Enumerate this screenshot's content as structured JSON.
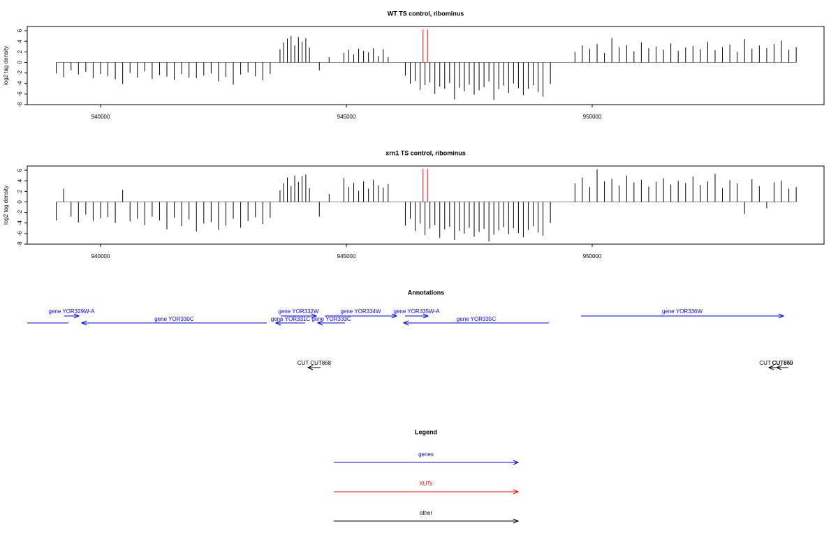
{
  "chart_data": [
    {
      "type": "bar",
      "title": "WT TS control, ribominus",
      "y_label": "log2 tag density",
      "xlim": [
        938509,
        954716
      ],
      "ylim": [
        -8,
        6.8
      ],
      "xticks": [
        940000,
        945000,
        950000
      ],
      "yticks": [
        -8,
        -6,
        -4,
        -2,
        0,
        2,
        4,
        6
      ],
      "color": "#000000",
      "x": [
        939100,
        939250,
        939400,
        939550,
        939700,
        939850,
        940000,
        940150,
        940300,
        940450,
        940600,
        940750,
        940900,
        941050,
        941200,
        941350,
        941500,
        941650,
        941800,
        941950,
        942100,
        942250,
        942400,
        942550,
        942700,
        942850,
        943000,
        943150,
        943300,
        943450,
        943650,
        943725,
        943800,
        943875,
        943950,
        944025,
        944100,
        944175,
        944250,
        944450,
        944650,
        944950,
        945050,
        945150,
        945250,
        945350,
        945450,
        945550,
        945650,
        945750,
        945850,
        946200,
        946300,
        946400,
        946500,
        946600,
        946700,
        946800,
        946900,
        947000,
        947100,
        947200,
        947300,
        947400,
        947500,
        947600,
        947700,
        947800,
        947900,
        948000,
        948100,
        948200,
        948300,
        948400,
        948500,
        948600,
        948700,
        948800,
        948900,
        949000,
        949150,
        949650,
        949800,
        949950,
        950100,
        950250,
        950400,
        950550,
        950700,
        950850,
        951000,
        951150,
        951300,
        951450,
        951600,
        951750,
        951900,
        952050,
        952200,
        952350,
        952500,
        952650,
        952800,
        952950,
        953100,
        953250,
        953400,
        953550,
        953700,
        953850,
        954000,
        954150
      ],
      "values": [
        -2.1,
        -2.8,
        -1.5,
        -2.3,
        -1.8,
        -3.0,
        -2.2,
        -2.6,
        -3.2,
        -4.1,
        -2.0,
        -2.9,
        -1.7,
        -3.1,
        -2.4,
        -2.7,
        -3.3,
        -2.2,
        -2.9,
        -3.0,
        -2.5,
        -2.1,
        -3.6,
        -2.8,
        -4.2,
        -2.3,
        -1.9,
        -2.6,
        -3.4,
        -2.2,
        2.5,
        3.8,
        4.5,
        5.0,
        3.2,
        4.8,
        3.9,
        4.6,
        2.8,
        -1.5,
        1.0,
        1.8,
        2.4,
        1.5,
        2.6,
        2.2,
        1.9,
        2.7,
        1.2,
        2.5,
        1.0,
        -2.5,
        -4.0,
        -3.5,
        -5.2,
        -4.3,
        -3.8,
        -6.0,
        -4.6,
        -5.0,
        -3.9,
        -7.0,
        -4.8,
        -5.5,
        -4.2,
        -6.1,
        -5.3,
        -4.7,
        -3.6,
        -7.1,
        -5.1,
        -4.4,
        -5.8,
        -4.0,
        -4.9,
        -6.2,
        -5.0,
        -4.3,
        -5.6,
        -6.5,
        -4.1,
        2.0,
        3.2,
        2.6,
        3.5,
        1.8,
        4.6,
        2.9,
        3.3,
        2.1,
        3.8,
        2.7,
        3.0,
        2.4,
        3.6,
        2.2,
        2.8,
        3.1,
        2.5,
        3.9,
        2.3,
        2.9,
        3.4,
        2.0,
        4.4,
        2.6,
        3.2,
        2.7,
        3.5,
        4.1,
        2.4,
        2.9
      ],
      "markers": [
        {
          "x": 946560,
          "color": "#ff0000"
        },
        {
          "x": 946650,
          "color": "#ff0000"
        }
      ]
    },
    {
      "type": "bar",
      "title": "xrn1 TS control, ribominus",
      "y_label": "log2 tag density",
      "xlim": [
        938509,
        954716
      ],
      "ylim": [
        -8,
        6.8
      ],
      "xticks": [
        940000,
        945000,
        950000
      ],
      "yticks": [
        -8,
        -6,
        -4,
        -2,
        0,
        2,
        4,
        6
      ],
      "color": "#000000",
      "x": [
        939100,
        939250,
        939400,
        939550,
        939700,
        939850,
        940000,
        940150,
        940300,
        940450,
        940600,
        940750,
        940900,
        941050,
        941200,
        941350,
        941500,
        941650,
        941800,
        941950,
        942100,
        942250,
        942400,
        942550,
        942700,
        942850,
        943000,
        943150,
        943300,
        943450,
        943650,
        943725,
        943800,
        943875,
        943950,
        944025,
        944100,
        944175,
        944250,
        944450,
        944650,
        944950,
        945050,
        945150,
        945250,
        945350,
        945450,
        945550,
        945650,
        945750,
        945850,
        946200,
        946300,
        946400,
        946500,
        946600,
        946700,
        946800,
        946900,
        947000,
        947100,
        947200,
        947300,
        947400,
        947500,
        947600,
        947700,
        947800,
        947900,
        948000,
        948100,
        948200,
        948300,
        948400,
        948500,
        948600,
        948700,
        948800,
        948900,
        949000,
        949150,
        949650,
        949800,
        949950,
        950100,
        950250,
        950400,
        950550,
        950700,
        950850,
        951000,
        951150,
        951300,
        951450,
        951600,
        951750,
        951900,
        952050,
        952200,
        952350,
        952500,
        952650,
        952800,
        952950,
        953100,
        953250,
        953400,
        953550,
        953700,
        953850,
        954000,
        954150
      ],
      "values": [
        -3.5,
        2.5,
        -2.8,
        -3.9,
        -2.4,
        -3.6,
        -3.1,
        -2.9,
        -4.0,
        2.3,
        -3.7,
        -3.2,
        -4.4,
        -2.8,
        -3.5,
        -5.2,
        -3.0,
        -4.6,
        -3.3,
        -5.6,
        -4.1,
        -3.8,
        -5.3,
        -4.5,
        -3.2,
        -4.9,
        -3.6,
        -2.9,
        -4.2,
        -3.0,
        2.2,
        3.5,
        4.6,
        3.0,
        5.0,
        3.8,
        4.9,
        5.2,
        2.6,
        -2.8,
        1.5,
        4.5,
        2.8,
        3.6,
        2.1,
        3.9,
        2.5,
        4.2,
        3.1,
        2.7,
        3.4,
        -4.5,
        -3.2,
        -5.5,
        -4.1,
        -6.3,
        -5.0,
        -4.4,
        -6.8,
        -5.2,
        -4.7,
        -7.2,
        -5.5,
        -6.0,
        -4.9,
        -6.6,
        -5.7,
        -5.1,
        -7.5,
        -6.2,
        -5.4,
        -4.8,
        -6.1,
        -5.0,
        -5.9,
        -6.7,
        -5.3,
        -4.6,
        -5.8,
        -6.4,
        -4.0,
        3.5,
        4.6,
        2.8,
        6.2,
        3.9,
        4.4,
        3.1,
        5.0,
        3.7,
        4.2,
        2.9,
        3.8,
        4.5,
        3.3,
        4.0,
        3.6,
        4.8,
        3.2,
        3.9,
        5.3,
        2.6,
        4.1,
        3.5,
        -2.3,
        4.3,
        3.0,
        -1.2,
        3.7,
        4.0,
        2.5,
        2.8
      ],
      "markers": [
        {
          "x": 946560,
          "color": "#ff0000"
        },
        {
          "x": 946650,
          "color": "#ff0000"
        }
      ]
    }
  ],
  "annotations": {
    "title": "Annotations",
    "xlim": [
      938509,
      954716
    ],
    "features": [
      {
        "label": "gene YOR329W-A",
        "start": 939261,
        "end": 939560,
        "strand": "+",
        "row": 0,
        "color": "#0000ff"
      },
      {
        "label": null,
        "start": 938509,
        "end": 939347,
        "strand": ".",
        "row": 1,
        "color": "#0000ff"
      },
      {
        "label": "gene YOR330C",
        "start": 939616,
        "end": 943381,
        "strand": "-",
        "row": 1,
        "color": "#0000ff"
      },
      {
        "label": "gene YOR332W",
        "start": 943665,
        "end": 944389,
        "strand": "+",
        "row": 0,
        "color": "#0000ff"
      },
      {
        "label": "gene YOR331C",
        "start": 943565,
        "end": 944162,
        "strand": "-",
        "row": 1,
        "color": "#0000ff"
      },
      {
        "label": "gene YOR333C",
        "start": 944418,
        "end": 944972,
        "strand": "-",
        "row": 1,
        "color": "#0000ff"
      },
      {
        "label": "gene YOR334W",
        "start": 944560,
        "end": 946023,
        "strand": "+",
        "row": 0,
        "color": "#0000ff"
      },
      {
        "label": "gene YOR335W-A",
        "start": 946193,
        "end": 946662,
        "strand": "+",
        "row": 0,
        "color": "#0000ff"
      },
      {
        "label": "gene YOR335C",
        "start": 946165,
        "end": 949119,
        "strand": "-",
        "row": 1,
        "color": "#0000ff"
      },
      {
        "label": "gene YOR336W",
        "start": 949773,
        "end": 953892,
        "strand": "+",
        "row": 0,
        "color": "#0000ff"
      },
      {
        "label": "CUT CUT868",
        "start": 944218,
        "end": 944474,
        "strand": "-",
        "row": 2,
        "color": "#000000"
      },
      {
        "label": "CUT CUT869",
        "start": 953593,
        "end": 953892,
        "strand": "-",
        "row": 2,
        "color": "#000000"
      },
      {
        "label": "CUT870",
        "start": 953750,
        "end": 953990,
        "strand": "-",
        "row": 2,
        "color": "#000000"
      }
    ]
  },
  "legend": {
    "title": "Legend",
    "items": [
      {
        "label": "genes",
        "color": "#0000ff"
      },
      {
        "label": "XUTs",
        "color": "#ff0000"
      },
      {
        "label": "other",
        "color": "#000000"
      }
    ]
  }
}
